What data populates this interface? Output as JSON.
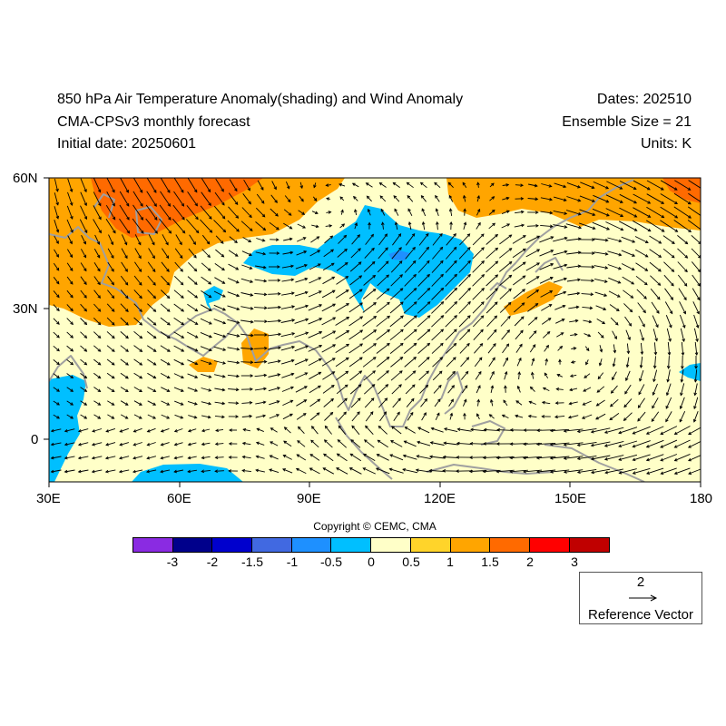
{
  "header": {
    "title": "850 hPa Air Temperature Anomaly(shading) and Wind Anomaly",
    "model": "CMA-CPSv3 monthly forecast",
    "initial_date": "Initial date: 20250601",
    "dates": "Dates: 202510",
    "ensemble": "Ensemble Size = 21",
    "units": "Units: K"
  },
  "map": {
    "lon_range": [
      30,
      180
    ],
    "lat_range": [
      -10,
      60
    ],
    "x_ticks": [
      "30E",
      "60E",
      "90E",
      "120E",
      "150E",
      "180"
    ],
    "y_ticks": [
      "60N",
      "30N",
      "0"
    ],
    "background_color": "#ffffc8",
    "land_outline_color": "#a0a0a0"
  },
  "colorbar": {
    "colors": [
      "#8a2be2",
      "#00008b",
      "#0000cd",
      "#4169e1",
      "#1e90ff",
      "#00bfff",
      "#ffffc8",
      "#ffd42a",
      "#ffa500",
      "#ff6a00",
      "#ff0000",
      "#c00000"
    ],
    "labels": [
      "-3",
      "-2",
      "-1.5",
      "-1",
      "-0.5",
      "0",
      "0.5",
      "1",
      "1.5",
      "2",
      "3"
    ]
  },
  "copyright": "Copyright © CEMC, CMA",
  "reference_vector": {
    "value": "2",
    "title": "Reference Vector"
  }
}
